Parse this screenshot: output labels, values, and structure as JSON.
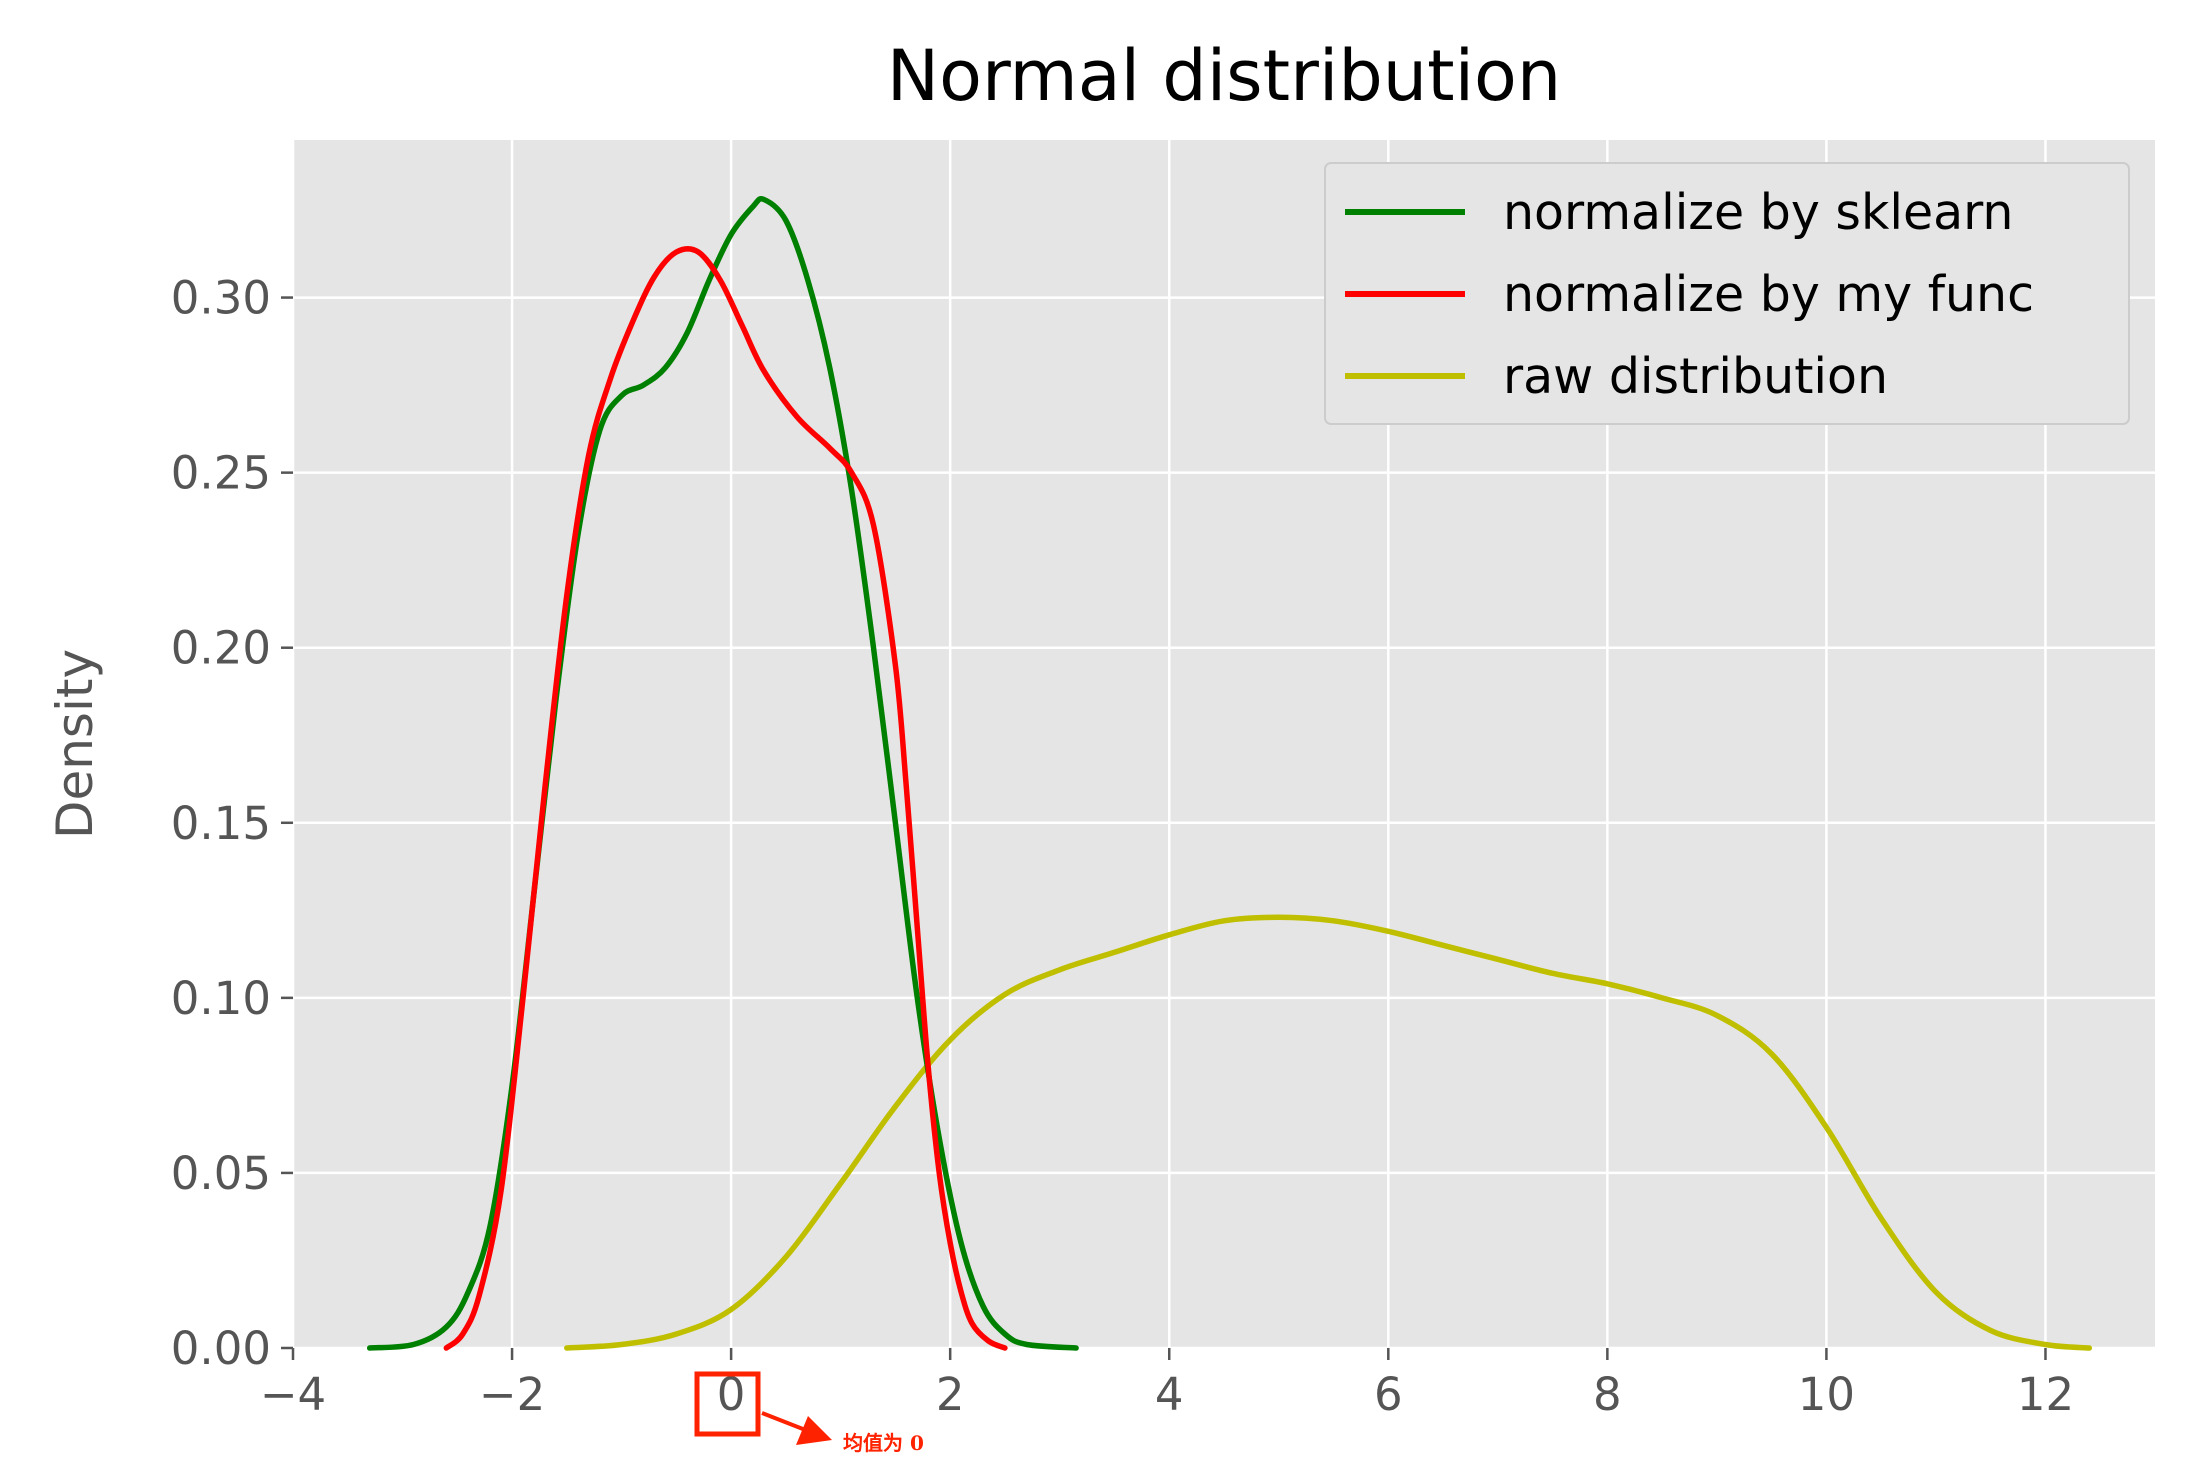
{
  "chart_data": {
    "type": "line",
    "title": "Normal distribution",
    "xlabel": "",
    "ylabel": "Density",
    "xlim": [
      -4,
      13
    ],
    "ylim": [
      0,
      0.345
    ],
    "x_ticks": [
      -4,
      -2,
      0,
      2,
      4,
      6,
      8,
      10,
      12
    ],
    "x_tick_labels": [
      "−4",
      "−2",
      "0",
      "2",
      "4",
      "6",
      "8",
      "10",
      "12"
    ],
    "y_ticks": [
      0,
      0.05,
      0.1,
      0.15,
      0.2,
      0.25,
      0.3
    ],
    "y_tick_labels": [
      "0.00",
      "0.05",
      "0.10",
      "0.15",
      "0.20",
      "0.25",
      "0.30"
    ],
    "grid": true,
    "legend_position": "top-right",
    "series": [
      {
        "name": "normalize by sklearn",
        "color": "#008000",
        "points": [
          [
            -3.3,
            0
          ],
          [
            -2.9,
            0.001
          ],
          [
            -2.6,
            0.006
          ],
          [
            -2.4,
            0.016
          ],
          [
            -2.2,
            0.035
          ],
          [
            -2.0,
            0.075
          ],
          [
            -1.8,
            0.13
          ],
          [
            -1.6,
            0.185
          ],
          [
            -1.4,
            0.232
          ],
          [
            -1.2,
            0.262
          ],
          [
            -1.0,
            0.272
          ],
          [
            -0.8,
            0.275
          ],
          [
            -0.6,
            0.28
          ],
          [
            -0.4,
            0.29
          ],
          [
            -0.2,
            0.305
          ],
          [
            0.0,
            0.318
          ],
          [
            0.2,
            0.326
          ],
          [
            0.3,
            0.328
          ],
          [
            0.5,
            0.322
          ],
          [
            0.7,
            0.305
          ],
          [
            0.9,
            0.28
          ],
          [
            1.1,
            0.245
          ],
          [
            1.3,
            0.2
          ],
          [
            1.5,
            0.15
          ],
          [
            1.7,
            0.1
          ],
          [
            1.9,
            0.06
          ],
          [
            2.1,
            0.03
          ],
          [
            2.3,
            0.012
          ],
          [
            2.5,
            0.004
          ],
          [
            2.7,
            0.001
          ],
          [
            3.15,
            0
          ]
        ]
      },
      {
        "name": "normalize by my func",
        "color": "#ff0000",
        "points": [
          [
            -2.6,
            0
          ],
          [
            -2.45,
            0.004
          ],
          [
            -2.3,
            0.015
          ],
          [
            -2.1,
            0.045
          ],
          [
            -1.9,
            0.1
          ],
          [
            -1.7,
            0.16
          ],
          [
            -1.5,
            0.215
          ],
          [
            -1.3,
            0.255
          ],
          [
            -1.1,
            0.277
          ],
          [
            -0.9,
            0.293
          ],
          [
            -0.7,
            0.306
          ],
          [
            -0.5,
            0.313
          ],
          [
            -0.3,
            0.313
          ],
          [
            -0.1,
            0.305
          ],
          [
            0.1,
            0.292
          ],
          [
            0.3,
            0.279
          ],
          [
            0.6,
            0.266
          ],
          [
            0.9,
            0.257
          ],
          [
            1.1,
            0.25
          ],
          [
            1.3,
            0.235
          ],
          [
            1.5,
            0.195
          ],
          [
            1.6,
            0.16
          ],
          [
            1.7,
            0.12
          ],
          [
            1.8,
            0.08
          ],
          [
            1.9,
            0.05
          ],
          [
            2.0,
            0.03
          ],
          [
            2.1,
            0.016
          ],
          [
            2.2,
            0.007
          ],
          [
            2.35,
            0.002
          ],
          [
            2.5,
            0
          ]
        ]
      },
      {
        "name": "raw distribution",
        "color": "#bfbf00",
        "points": [
          [
            -1.5,
            0
          ],
          [
            -1.0,
            0.001
          ],
          [
            -0.5,
            0.004
          ],
          [
            0.0,
            0.011
          ],
          [
            0.5,
            0.026
          ],
          [
            1.0,
            0.047
          ],
          [
            1.5,
            0.069
          ],
          [
            2.0,
            0.088
          ],
          [
            2.5,
            0.101
          ],
          [
            3.0,
            0.108
          ],
          [
            3.5,
            0.113
          ],
          [
            4.0,
            0.118
          ],
          [
            4.5,
            0.122
          ],
          [
            5.0,
            0.123
          ],
          [
            5.5,
            0.122
          ],
          [
            6.0,
            0.119
          ],
          [
            6.5,
            0.115
          ],
          [
            7.0,
            0.111
          ],
          [
            7.5,
            0.107
          ],
          [
            8.0,
            0.104
          ],
          [
            8.5,
            0.1
          ],
          [
            9.0,
            0.095
          ],
          [
            9.5,
            0.084
          ],
          [
            10.0,
            0.063
          ],
          [
            10.5,
            0.037
          ],
          [
            11.0,
            0.016
          ],
          [
            11.5,
            0.005
          ],
          [
            12.0,
            0.001
          ],
          [
            12.4,
            0
          ]
        ]
      }
    ],
    "annotation": {
      "text": "均值为 0",
      "color": "#ff2200"
    }
  }
}
